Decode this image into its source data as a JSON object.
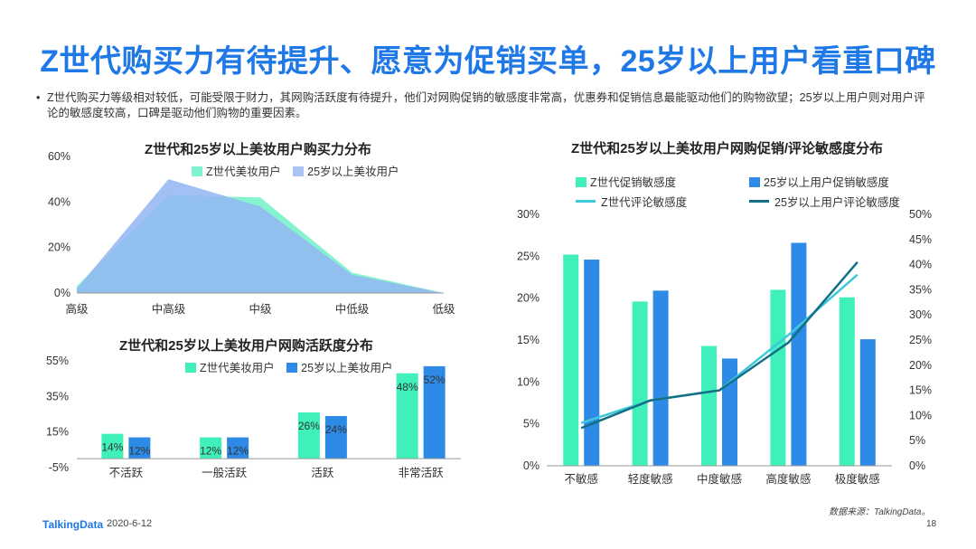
{
  "header": {
    "title": "Z世代购买力有待提升、愿意为促销买单，25岁以上用户看重口碑",
    "bullet": "Z世代购买力等级相对较低，可能受限于财力，其网购活跃度有待提升，他们对网购促销的敏感度非常高，优惠券和促销信息最能驱动他们的购物欲望；25岁以上用户则对用户评论的敏感度较高，口碑是驱动他们购物的重要因素。",
    "bullet_marker": "•"
  },
  "colors": {
    "green": "#3ff0bb",
    "blue": "#2d8ae6",
    "blue_area": "#8fb2f2",
    "line_green": "#3ec8dc",
    "line_blue": "#136f86"
  },
  "chart_data": [
    {
      "type": "area",
      "title": "Z世代和25岁以上美妆用户购买力分布",
      "categories": [
        "高级",
        "中高级",
        "中级",
        "中低级",
        "低级"
      ],
      "series": [
        {
          "name": "Z世代美妆用户",
          "values": [
            3,
            43,
            42,
            9,
            0
          ]
        },
        {
          "name": "25岁以上美妆用户",
          "values": [
            2,
            50,
            38,
            8,
            0
          ]
        }
      ],
      "yticks": [
        "0%",
        "20%",
        "40%",
        "60%"
      ],
      "ylim": [
        0,
        60
      ]
    },
    {
      "type": "bar",
      "title": "Z世代和25岁以上美妆用户网购活跃度分布",
      "categories": [
        "不活跃",
        "一般活跃",
        "活跃",
        "非常活跃"
      ],
      "series": [
        {
          "name": "Z世代美妆用户",
          "values": [
            14,
            12,
            26,
            48
          ],
          "labels": [
            "14%",
            "12%",
            "26%",
            "48%"
          ]
        },
        {
          "name": "25岁以上美妆用户",
          "values": [
            12,
            12,
            24,
            52
          ],
          "labels": [
            "12%",
            "12%",
            "24%",
            "52%"
          ]
        }
      ],
      "yticks": [
        "-5%",
        "15%",
        "35%",
        "55%"
      ],
      "ylim": [
        -5,
        55
      ]
    },
    {
      "type": "bar",
      "title": "Z世代和25岁以上美妆用户网购促销/评论敏感度分布",
      "categories": [
        "不敏感",
        "轻度敏感",
        "中度敏感",
        "高度敏感",
        "极度敏感"
      ],
      "bar_series": [
        {
          "name": "Z世代促销敏感度",
          "values": [
            25.2,
            19.6,
            14.3,
            21,
            20.1
          ]
        },
        {
          "name": "25岁以上用户促销敏感度",
          "values": [
            24.6,
            20.9,
            12.8,
            26.6,
            15.1
          ]
        }
      ],
      "line_series": [
        {
          "name": "Z世代评论敏感度",
          "values": [
            8.5,
            13,
            15,
            26,
            38
          ]
        },
        {
          "name": "25岁以上用户评论敏感度",
          "values": [
            7.5,
            13,
            15,
            24.5,
            40.5
          ]
        }
      ],
      "yticks_left": [
        "0%",
        "5%",
        "10%",
        "15%",
        "20%",
        "25%",
        "30%"
      ],
      "yticks_right": [
        "0%",
        "5%",
        "10%",
        "15%",
        "20%",
        "25%",
        "30%",
        "35%",
        "40%",
        "45%",
        "50%"
      ],
      "ylim_left": [
        0,
        30
      ],
      "ylim_right": [
        0,
        50
      ]
    }
  ],
  "footer": {
    "logo": "TalkingData",
    "date": "2020-6-12",
    "source": "数据来源：TalkingData。",
    "page": "18"
  }
}
